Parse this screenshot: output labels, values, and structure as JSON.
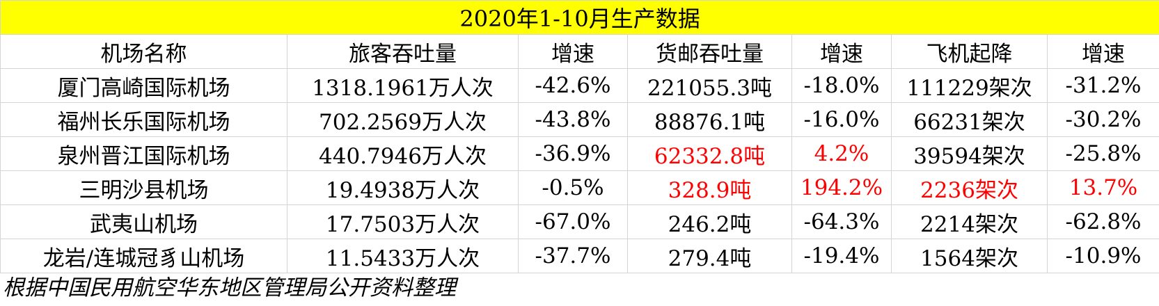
{
  "title": "2020年1-10月生产数据",
  "table": {
    "header": [
      "机场名称",
      "旅客吞吐量",
      "增速",
      "货邮吞吐量",
      "增速",
      "飞机起降",
      "增速"
    ],
    "rows": [
      [
        "厦门高崎国际机场",
        "1318.1961万人次",
        "-42.6%",
        "221055.3吨",
        "-18.0%",
        "111229架次",
        "-31.2%"
      ],
      [
        "福州长乐国际机场",
        "702.2569万人次",
        "-43.8%",
        "88876.1吨",
        "-16.0%",
        "66231架次",
        "-30.2%"
      ],
      [
        "泉州晋江国际机场",
        "440.7946万人次",
        "-36.9%",
        "62332.8吨",
        "4.2%",
        "39594架次",
        "-25.8%"
      ],
      [
        "三明沙县机场",
        "19.4938万人次",
        "-0.5%",
        "328.9吨",
        "194.2%",
        "2236架次",
        "13.7%"
      ],
      [
        "武夷山机场",
        "17.7503万人次",
        "-67.0%",
        "246.2吨",
        "-64.3%",
        "2214架次",
        "-62.8%"
      ],
      [
        "龙岩/连城冠豸山机场",
        "11.5433万人次",
        "-37.7%",
        "279.4吨",
        "-19.4%",
        "1564架次",
        "-10.9%"
      ]
    ],
    "highlight_color": "#ff0000",
    "highlighted": [
      [
        2,
        3
      ],
      [
        2,
        4
      ],
      [
        3,
        3
      ],
      [
        3,
        4
      ],
      [
        3,
        5
      ],
      [
        3,
        6
      ]
    ]
  },
  "footer": "根据中国民用航空华东地区管理局公开资料整理"
}
